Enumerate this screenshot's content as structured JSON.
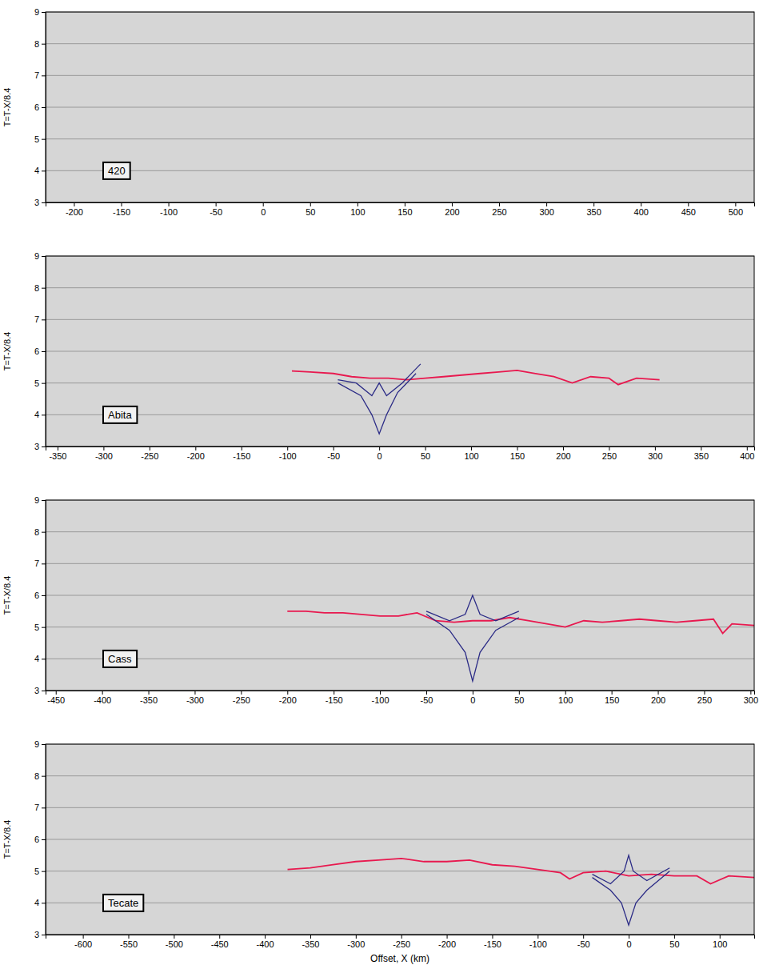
{
  "chart_data": [
    {
      "type": "line",
      "label": "420",
      "ylabel": "T=T-X/8.4",
      "xlim": [
        -230,
        520
      ],
      "xticks": [
        -200,
        -150,
        -100,
        -50,
        0,
        50,
        100,
        150,
        200,
        250,
        300,
        350,
        400,
        450,
        500
      ],
      "ylim": [
        3,
        9
      ],
      "yticks": [
        3,
        4,
        5,
        6,
        7,
        8,
        9
      ],
      "grid": true,
      "series": []
    },
    {
      "type": "line",
      "label": "Abita",
      "ylabel": "T=T-X/8.4",
      "xlim": [
        -363,
        408
      ],
      "xticks": [
        -350,
        -300,
        -250,
        -200,
        -150,
        -100,
        -50,
        0,
        50,
        100,
        150,
        200,
        250,
        300,
        350,
        400
      ],
      "ylim": [
        3,
        9
      ],
      "yticks": [
        3,
        4,
        5,
        6,
        7,
        8,
        9
      ],
      "grid": true,
      "series": [
        {
          "color": "#e8194f",
          "x": [
            -95,
            -75,
            -50,
            -30,
            -10,
            10,
            30,
            50,
            70,
            90,
            110,
            130,
            150,
            170,
            190,
            210,
            230,
            250,
            260,
            280,
            305
          ],
          "values": [
            5.38,
            5.35,
            5.3,
            5.2,
            5.15,
            5.15,
            5.1,
            5.15,
            5.2,
            5.25,
            5.3,
            5.35,
            5.4,
            5.3,
            5.2,
            5.0,
            5.2,
            5.15,
            4.95,
            5.15,
            5.1
          ]
        },
        {
          "color": "#2b2b86",
          "x": [
            -45,
            -20,
            -8,
            0,
            8,
            20,
            40
          ],
          "values": [
            5.0,
            4.6,
            4.0,
            3.4,
            4.0,
            4.7,
            5.3
          ]
        },
        {
          "color": "#2b2b86",
          "x": [
            -45,
            -25,
            -8,
            0,
            8,
            25,
            45
          ],
          "values": [
            5.1,
            5.0,
            4.6,
            5.0,
            4.6,
            5.0,
            5.6
          ]
        }
      ]
    },
    {
      "type": "line",
      "label": "Cass",
      "ylabel": "T=T-X/8.4",
      "xlim": [
        -461,
        304
      ],
      "xticks": [
        -450,
        -400,
        -350,
        -300,
        -250,
        -200,
        -150,
        -100,
        -50,
        0,
        50,
        100,
        150,
        200,
        250,
        300
      ],
      "ylim": [
        3,
        9
      ],
      "yticks": [
        3,
        4,
        5,
        6,
        7,
        8,
        9
      ],
      "grid": true,
      "series": [
        {
          "color": "#e8194f",
          "x": [
            -200,
            -180,
            -160,
            -140,
            -120,
            -100,
            -80,
            -60,
            -40,
            -20,
            0,
            20,
            40,
            60,
            80,
            100,
            120,
            140,
            160,
            180,
            200,
            220,
            240,
            260,
            270,
            280,
            304
          ],
          "values": [
            5.5,
            5.5,
            5.45,
            5.45,
            5.4,
            5.35,
            5.35,
            5.45,
            5.2,
            5.15,
            5.2,
            5.2,
            5.3,
            5.2,
            5.1,
            5.0,
            5.2,
            5.15,
            5.2,
            5.25,
            5.2,
            5.15,
            5.2,
            5.25,
            4.8,
            5.1,
            5.05
          ]
        },
        {
          "color": "#2b2b86",
          "x": [
            -50,
            -25,
            -8,
            0,
            8,
            25,
            50
          ],
          "values": [
            5.4,
            4.9,
            4.2,
            3.3,
            4.2,
            4.9,
            5.3
          ]
        },
        {
          "color": "#2b2b86",
          "x": [
            -50,
            -25,
            -8,
            0,
            8,
            25,
            50
          ],
          "values": [
            5.5,
            5.2,
            5.4,
            6.0,
            5.4,
            5.2,
            5.5
          ]
        }
      ]
    },
    {
      "type": "line",
      "label": "Tecate",
      "ylabel": "T=T-X/8.4",
      "xlabel": "Offset, X (km)",
      "xlim": [
        -641,
        138
      ],
      "xticks": [
        -600,
        -550,
        -500,
        -450,
        -400,
        -350,
        -300,
        -250,
        -200,
        -150,
        -100,
        -50,
        0,
        50,
        100
      ],
      "ylim": [
        3,
        9
      ],
      "yticks": [
        3,
        4,
        5,
        6,
        7,
        8,
        9
      ],
      "grid": true,
      "series": [
        {
          "color": "#e8194f",
          "x": [
            -375,
            -350,
            -325,
            -300,
            -275,
            -250,
            -225,
            -200,
            -175,
            -150,
            -125,
            -100,
            -75,
            -65,
            -50,
            -25,
            0,
            25,
            50,
            75,
            90,
            110,
            138
          ],
          "values": [
            5.05,
            5.1,
            5.2,
            5.3,
            5.35,
            5.4,
            5.3,
            5.3,
            5.35,
            5.2,
            5.15,
            5.05,
            4.95,
            4.75,
            4.95,
            5.0,
            4.85,
            4.9,
            4.85,
            4.85,
            4.6,
            4.85,
            4.8
          ]
        },
        {
          "color": "#2b2b86",
          "x": [
            -40,
            -20,
            -8,
            0,
            8,
            20,
            45
          ],
          "values": [
            4.8,
            4.4,
            4.0,
            3.3,
            4.0,
            4.4,
            5.0
          ]
        },
        {
          "color": "#2b2b86",
          "x": [
            -40,
            -20,
            -5,
            0,
            5,
            20,
            45
          ],
          "values": [
            4.9,
            4.6,
            5.0,
            5.5,
            5.0,
            4.7,
            5.1
          ]
        }
      ]
    }
  ]
}
